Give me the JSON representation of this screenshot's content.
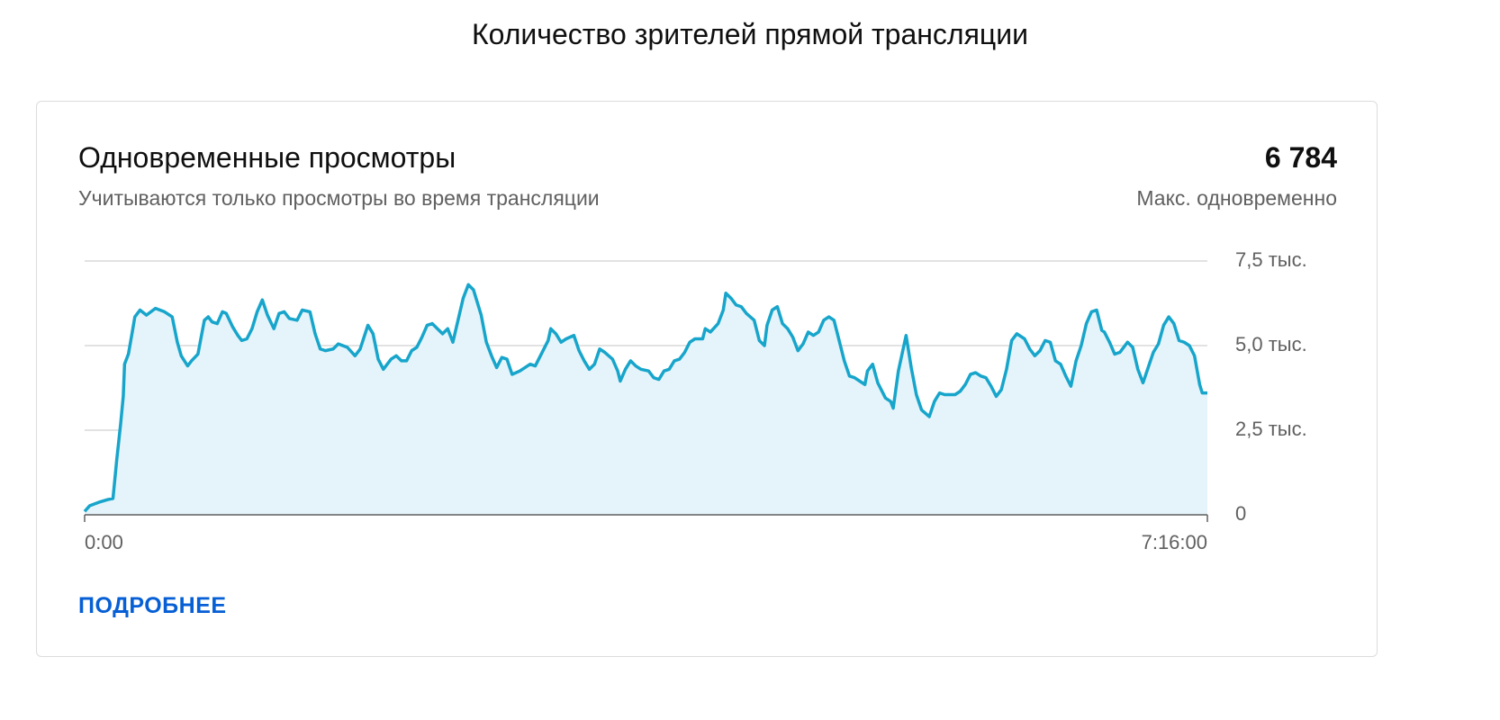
{
  "header": {
    "title": "Количество зрителей прямой трансляции"
  },
  "card": {
    "title": "Одновременные просмотры",
    "subtitle": "Учитываются только просмотры во время трансляции",
    "max_value": "6 784",
    "max_label": "Макс. одновременно",
    "link": "ПОДРОБНЕЕ"
  },
  "chart_data": {
    "type": "line",
    "fill": true,
    "color": "#17a5cb",
    "fill_color": "#e5f4fa",
    "grid": true,
    "xlim": [
      0,
      436
    ],
    "xticks": [
      {
        "value": 0,
        "label": "0:00"
      },
      {
        "value": 436,
        "label": "7:16:00"
      }
    ],
    "ylim": [
      0,
      7500
    ],
    "yticks": [
      0,
      {
        "value": 2500,
        "label": "2,5 тыс."
      },
      {
        "value": 5000,
        "label": "5,0 тыс."
      },
      {
        "value": 7500,
        "label": "7,5 тыс."
      }
    ],
    "x": [
      0,
      2,
      5.5,
      9,
      11,
      12.5,
      14,
      15,
      15.5,
      17,
      18.5,
      19.5,
      21.5,
      24,
      27.5,
      31,
      34,
      36,
      37.5,
      40,
      41.5,
      44,
      46.5,
      48,
      49.5,
      51.5,
      53.5,
      55,
      57.5,
      59.5,
      61,
      63,
      65,
      67,
      69,
      71,
      73.5,
      75.5,
      77.5,
      79.5,
      82.5,
      84.5,
      87.5,
      89.5,
      91.5,
      93.5,
      96.5,
      98.5,
      102,
      105,
      107,
      110,
      112,
      114,
      116,
      119,
      121,
      123,
      125,
      127,
      129,
      131,
      133,
      135,
      137,
      139,
      141,
      143,
      145,
      147,
      149,
      151,
      154,
      156,
      158,
      160,
      162,
      164,
      166,
      169,
      171,
      173,
      175,
      177,
      180,
      181,
      183,
      185,
      187,
      190,
      192,
      194,
      196,
      198,
      200,
      202,
      205,
      207,
      208,
      210,
      212,
      214,
      216,
      219,
      221,
      223,
      225,
      227,
      229,
      231,
      233,
      235,
      237,
      240,
      241,
      243,
      246,
      248,
      249,
      251,
      253,
      255,
      257,
      260,
      262,
      264,
      265,
      267,
      269,
      271,
      273,
      275,
      277,
      279,
      281,
      283,
      285,
      287,
      289,
      291,
      293,
      295,
      297,
      299,
      301,
      303,
      304,
      306,
      308,
      311,
      313,
      314,
      316,
      319,
      321,
      323,
      325,
      328,
      330,
      332,
      334,
      338,
      340,
      342,
      344,
      346,
      348,
      350,
      352,
      354,
      356,
      358,
      360,
      362,
      365,
      367,
      369,
      371,
      373,
      375,
      377,
      379,
      381,
      383,
      385,
      387,
      389,
      391,
      393,
      395,
      396,
      398,
      400,
      402,
      405,
      407,
      409,
      411,
      413,
      415,
      417,
      419,
      421,
      423,
      425,
      427,
      429,
      431,
      433,
      434,
      436
    ],
    "values": [
      100,
      270,
      370,
      450,
      480,
      1650,
      2700,
      3500,
      4450,
      4750,
      5400,
      5850,
      6050,
      5900,
      6100,
      6000,
      5850,
      5100,
      4700,
      4400,
      4550,
      4750,
      5750,
      5850,
      5700,
      5650,
      6000,
      5950,
      5550,
      5300,
      5150,
      5200,
      5500,
      6000,
      6350,
      5900,
      5500,
      5950,
      6000,
      5800,
      5750,
      6050,
      6000,
      5350,
      4900,
      4850,
      4900,
      5050,
      4950,
      4700,
      4900,
      5600,
      5350,
      4600,
      4300,
      4600,
      4700,
      4550,
      4550,
      4850,
      4950,
      5250,
      5600,
      5650,
      5500,
      5350,
      5500,
      5100,
      5750,
      6400,
      6800,
      6650,
      5900,
      5100,
      4700,
      4350,
      4650,
      4600,
      4150,
      4250,
      4350,
      4450,
      4400,
      4700,
      5150,
      5500,
      5350,
      5100,
      5200,
      5300,
      4850,
      4550,
      4300,
      4450,
      4900,
      4800,
      4600,
      4250,
      3950,
      4300,
      4550,
      4400,
      4300,
      4250,
      4050,
      4000,
      4250,
      4300,
      4550,
      4600,
      4800,
      5100,
      5200,
      5200,
      5500,
      5400,
      5650,
      6050,
      6550,
      6400,
      6200,
      6150,
      5950,
      5750,
      5150,
      5000,
      5600,
      6050,
      6150,
      5650,
      5500,
      5250,
      4850,
      5050,
      5400,
      5300,
      5400,
      5750,
      5850,
      5750,
      5150,
      4550,
      4100,
      4050,
      3950,
      3850,
      4250,
      4450,
      3900,
      3450,
      3350,
      3150,
      4250,
      5300,
      4350,
      3550,
      3100,
      2900,
      3350,
      3600,
      3550,
      3550,
      3650,
      3850,
      4150,
      4200,
      4100,
      4050,
      3800,
      3500,
      3700,
      4300,
      5150,
      5350,
      5200,
      4900,
      4700,
      4850,
      5150,
      5100,
      4550,
      4450,
      4100,
      3800,
      4550,
      5000,
      5650,
      6000,
      6050,
      5450,
      5400,
      5100,
      4750,
      4800,
      5100,
      4950,
      4300,
      3900,
      4350,
      4800,
      5050,
      5600,
      5850,
      5650,
      5150,
      5100,
      5000,
      4700,
      3850,
      3600,
      3600
    ]
  }
}
